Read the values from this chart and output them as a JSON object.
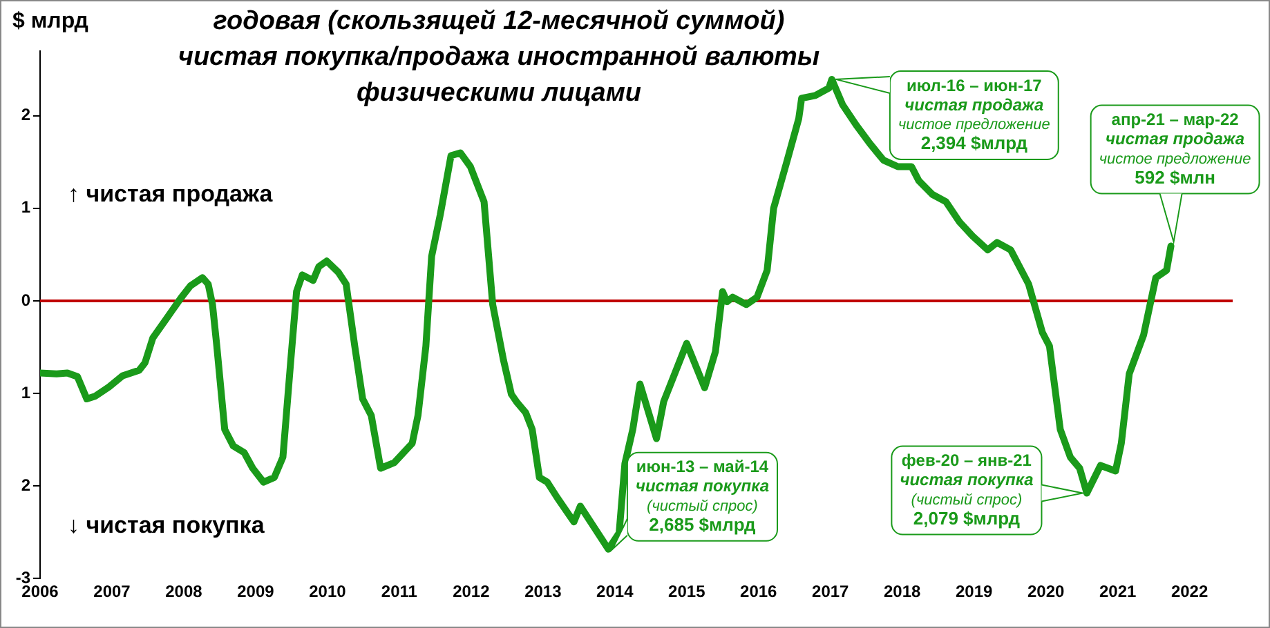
{
  "chart_data": {
    "type": "line",
    "title": "годовая (скользящей 12-месячной суммой)\nчистая покупка/продажа иностранной валюты\nфизическими лицами",
    "ylabel": "$ млрд",
    "x": [
      2006.0,
      2006.23,
      2006.38,
      2006.52,
      2006.65,
      2006.77,
      2006.96,
      2007.15,
      2007.38,
      2007.46,
      2007.57,
      2007.77,
      2007.96,
      2008.09,
      2008.26,
      2008.34,
      2008.4,
      2008.46,
      2008.57,
      2008.69,
      2008.84,
      2008.96,
      2009.11,
      2009.26,
      2009.38,
      2009.49,
      2009.57,
      2009.65,
      2009.8,
      2009.88,
      2009.99,
      2010.15,
      2010.26,
      2010.38,
      2010.49,
      2010.61,
      2010.74,
      2010.93,
      2011.18,
      2011.26,
      2011.37,
      2011.45,
      2011.57,
      2011.72,
      2011.85,
      2011.99,
      2012.18,
      2012.3,
      2012.45,
      2012.56,
      2012.64,
      2012.76,
      2012.85,
      2012.95,
      2013.06,
      2013.2,
      2013.43,
      2013.52,
      2013.91,
      2014.06,
      2014.14,
      2014.25,
      2014.35,
      2014.58,
      2014.68,
      2015.0,
      2015.25,
      2015.4,
      2015.5,
      2015.56,
      2015.64,
      2015.83,
      2015.98,
      2016.12,
      2016.21,
      2016.4,
      2016.56,
      2016.6,
      2016.79,
      2016.98,
      2017.02,
      2017.17,
      2017.36,
      2017.55,
      2017.74,
      2017.94,
      2018.13,
      2018.23,
      2018.42,
      2018.61,
      2018.8,
      2018.98,
      2019.19,
      2019.32,
      2019.51,
      2019.76,
      2019.95,
      2020.05,
      2020.2,
      2020.34,
      2020.47,
      2020.57,
      2020.76,
      2020.97,
      2021.05,
      2021.16,
      2021.36,
      2021.53,
      2021.68,
      2021.74
    ],
    "series": [
      {
        "color": "#1a9a1a",
        "values": [
          -0.78,
          -0.79,
          -0.78,
          -0.82,
          -1.06,
          -1.03,
          -0.93,
          -0.81,
          -0.75,
          -0.67,
          -0.4,
          -0.18,
          0.03,
          0.16,
          0.25,
          0.18,
          -0.04,
          -0.49,
          -1.39,
          -1.57,
          -1.64,
          -1.81,
          -1.96,
          -1.91,
          -1.69,
          -0.64,
          0.1,
          0.28,
          0.22,
          0.37,
          0.43,
          0.31,
          0.18,
          -0.49,
          -1.06,
          -1.24,
          -1.81,
          -1.75,
          -1.54,
          -1.24,
          -0.49,
          0.48,
          0.93,
          1.57,
          1.6,
          1.45,
          1.07,
          -0.04,
          -0.64,
          -1.01,
          -1.1,
          -1.21,
          -1.39,
          -1.91,
          -1.96,
          -2.13,
          -2.39,
          -2.22,
          -2.685,
          -2.51,
          -1.76,
          -1.39,
          -0.9,
          -1.49,
          -1.09,
          -0.46,
          -0.94,
          -0.55,
          0.1,
          -0.01,
          0.04,
          -0.04,
          0.04,
          0.33,
          1.0,
          1.52,
          1.97,
          2.19,
          2.22,
          2.3,
          2.394,
          2.12,
          1.9,
          1.7,
          1.52,
          1.45,
          1.45,
          1.3,
          1.15,
          1.07,
          0.85,
          0.7,
          0.55,
          0.63,
          0.55,
          0.18,
          -0.34,
          -0.49,
          -1.39,
          -1.69,
          -1.81,
          -2.079,
          -1.78,
          -1.84,
          -1.54,
          -0.79,
          -0.37,
          0.25,
          0.33,
          0.592
        ]
      }
    ],
    "xlim": [
      2006,
      2022.6
    ],
    "xticks": [
      2006,
      2007,
      2008,
      2009,
      2010,
      2011,
      2012,
      2013,
      2014,
      2015,
      2016,
      2017,
      2018,
      2019,
      2020,
      2021,
      2022
    ],
    "ylim": [
      -3,
      2.7
    ],
    "yticks": [
      {
        "value": 2,
        "label": "2"
      },
      1,
      0,
      {
        "value": -1,
        "label": "1"
      },
      {
        "value": -2,
        "label": "2"
      },
      -3
    ],
    "ref_lines": [
      {
        "axis": "y",
        "value": 0,
        "color": "#c00000"
      }
    ],
    "annotations": [
      "↑ чистая продажа",
      "↓ чистая покупка",
      {
        "text": "июн-13 – май-14\nчистая покупка\n(чистый спрос)\n2,685 $млрд",
        "x": 2013.91,
        "y": -2.685
      },
      {
        "text": "июл-16 – июн-17\nчистая продажа\nчистое предложение\n2,394 $млрд",
        "x": 2017.02,
        "y": 2.394
      },
      {
        "text": "фев-20 – янв-21\nчистая покупка\n(чистый спрос)\n2,079 $млрд",
        "x": 2020.57,
        "y": -2.079
      },
      {
        "text": "апр-21 – мар-22\nчистая продажа\nчистое предложение\n592 $млн",
        "x": 2021.74,
        "y": 0.592
      }
    ],
    "grid": false,
    "legend": false,
    "marker": "none",
    "line_style": "solid"
  }
}
